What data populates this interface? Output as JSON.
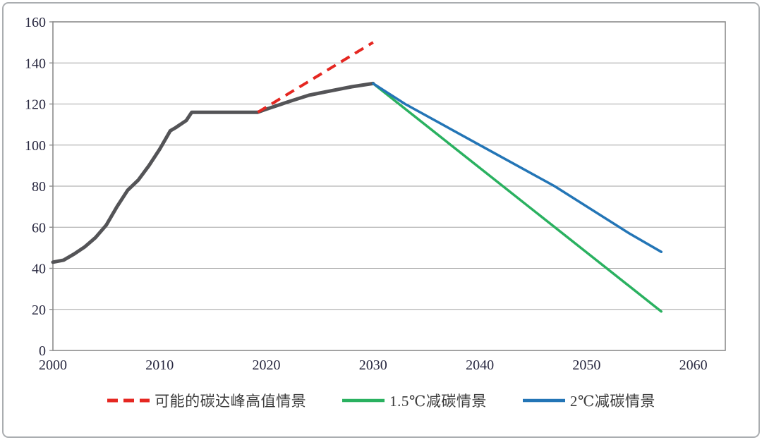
{
  "chart_data": {
    "type": "line",
    "title": "",
    "xlabel": "",
    "ylabel": "",
    "xlim": [
      2000,
      2063
    ],
    "ylim": [
      0,
      160
    ],
    "x_ticks": [
      2000,
      2010,
      2020,
      2030,
      2040,
      2050,
      2060
    ],
    "y_ticks": [
      0,
      20,
      40,
      60,
      80,
      100,
      120,
      140,
      160
    ],
    "grid": "horizontal",
    "legend_position": "bottom",
    "series": [
      {
        "id": "historical-emissions",
        "name": "",
        "color": "#545457",
        "style": "solid",
        "stroke_width": 5,
        "in_legend": false,
        "points": [
          [
            2000,
            43
          ],
          [
            2001,
            44
          ],
          [
            2002,
            47
          ],
          [
            2003,
            50.5
          ],
          [
            2004,
            55
          ],
          [
            2005,
            61
          ],
          [
            2006,
            70
          ],
          [
            2007,
            78
          ],
          [
            2008,
            83
          ],
          [
            2009,
            90
          ],
          [
            2010,
            98
          ],
          [
            2011,
            107
          ],
          [
            2011.5,
            108.5
          ],
          [
            2012.5,
            112
          ],
          [
            2013,
            116
          ],
          [
            2019.2,
            116
          ],
          [
            2020,
            117.5
          ],
          [
            2021,
            119.2
          ],
          [
            2022,
            121
          ],
          [
            2022.8,
            122.3
          ],
          [
            2024,
            124.3
          ],
          [
            2026,
            126.4
          ],
          [
            2028,
            128.4
          ],
          [
            2030,
            130
          ]
        ]
      },
      {
        "id": "possible-peak-high-scenario",
        "name": "可能的碳达峰高值情景",
        "color": "#e52721",
        "style": "dashed",
        "stroke_width": 4,
        "in_legend": true,
        "points": [
          [
            2019.2,
            116
          ],
          [
            2030,
            150
          ]
        ]
      },
      {
        "id": "1p5c-reduction-scenario",
        "name": "1.5℃减碳情景",
        "color": "#2ab160",
        "style": "solid",
        "stroke_width": 3.5,
        "in_legend": true,
        "points": [
          [
            2030,
            130
          ],
          [
            2057,
            19
          ]
        ]
      },
      {
        "id": "2c-reduction-scenario",
        "name": "2℃减碳情景",
        "color": "#2375b6",
        "style": "solid",
        "stroke_width": 3.5,
        "in_legend": true,
        "points": [
          [
            2030,
            130
          ],
          [
            2033,
            120
          ],
          [
            2040,
            100
          ],
          [
            2047,
            80
          ],
          [
            2054,
            57
          ],
          [
            2057,
            48
          ]
        ]
      }
    ]
  },
  "colors": {
    "axis": "#8c8c8c",
    "grid": "#a2a2a2",
    "tick_label": "#27273f",
    "legend_text": "#3b3b3b",
    "frame_border": "#aaadb0",
    "background": "#ffffff"
  }
}
